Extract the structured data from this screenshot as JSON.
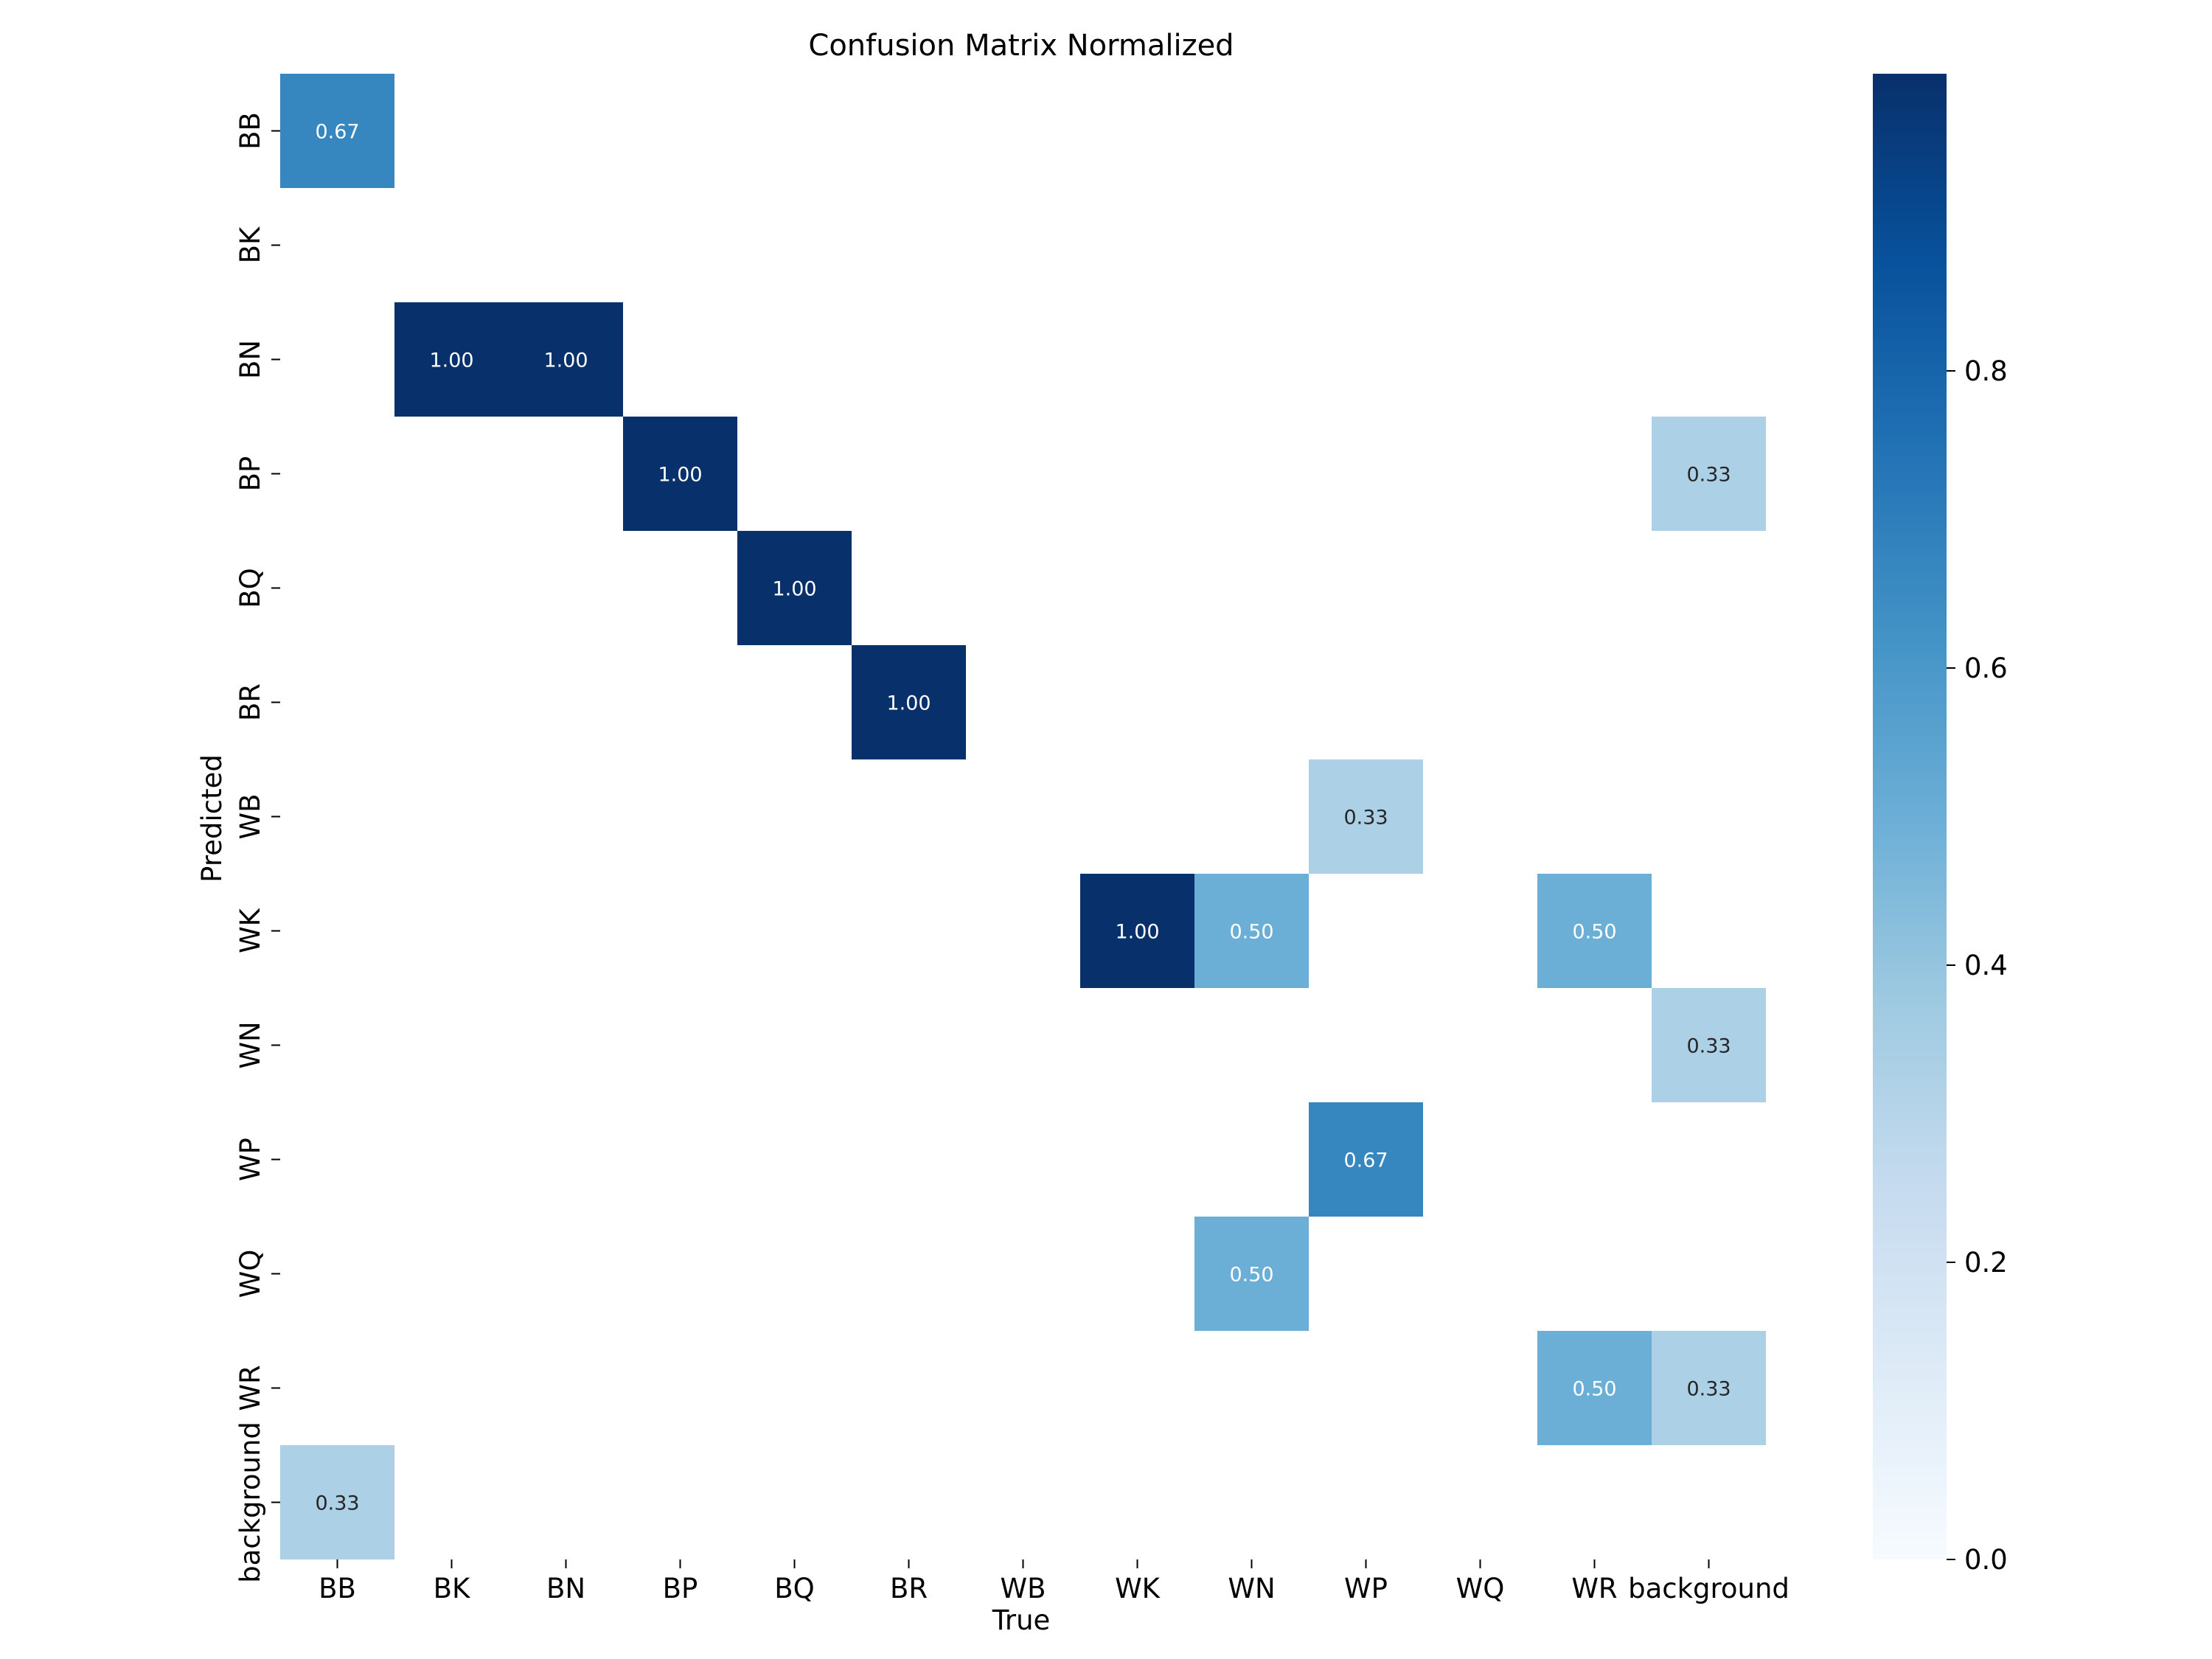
{
  "chart_data": {
    "type": "heatmap",
    "title": "Confusion Matrix Normalized",
    "xlabel": "True",
    "ylabel": "Predicted",
    "x_categories": [
      "BB",
      "BK",
      "BN",
      "BP",
      "BQ",
      "BR",
      "WB",
      "WK",
      "WN",
      "WP",
      "WQ",
      "WR",
      "background"
    ],
    "y_categories": [
      "BB",
      "BK",
      "BN",
      "BP",
      "BQ",
      "BR",
      "WB",
      "WK",
      "WN",
      "WP",
      "WQ",
      "WR",
      "background"
    ],
    "cells": [
      {
        "row": "BB",
        "col": "BB",
        "value": 0.67,
        "label": "0.67"
      },
      {
        "row": "BN",
        "col": "BK",
        "value": 1.0,
        "label": "1.00"
      },
      {
        "row": "BN",
        "col": "BN",
        "value": 1.0,
        "label": "1.00"
      },
      {
        "row": "BP",
        "col": "BP",
        "value": 1.0,
        "label": "1.00"
      },
      {
        "row": "BP",
        "col": "background",
        "value": 0.33,
        "label": "0.33"
      },
      {
        "row": "BQ",
        "col": "BQ",
        "value": 1.0,
        "label": "1.00"
      },
      {
        "row": "BR",
        "col": "BR",
        "value": 1.0,
        "label": "1.00"
      },
      {
        "row": "WB",
        "col": "WP",
        "value": 0.33,
        "label": "0.33"
      },
      {
        "row": "WK",
        "col": "WK",
        "value": 1.0,
        "label": "1.00"
      },
      {
        "row": "WK",
        "col": "WN",
        "value": 0.5,
        "label": "0.50"
      },
      {
        "row": "WK",
        "col": "WR",
        "value": 0.5,
        "label": "0.50"
      },
      {
        "row": "WN",
        "col": "background",
        "value": 0.33,
        "label": "0.33"
      },
      {
        "row": "WP",
        "col": "WP",
        "value": 0.67,
        "label": "0.67"
      },
      {
        "row": "WQ",
        "col": "WN",
        "value": 0.5,
        "label": "0.50"
      },
      {
        "row": "WR",
        "col": "WR",
        "value": 0.5,
        "label": "0.50"
      },
      {
        "row": "WR",
        "col": "background",
        "value": 0.33,
        "label": "0.33"
      },
      {
        "row": "background",
        "col": "BB",
        "value": 0.33,
        "label": "0.33"
      }
    ],
    "colorbar": {
      "colormap": "Blues",
      "range": [
        0,
        1.0
      ],
      "ticks": [
        "0.0",
        "0.2",
        "0.4",
        "0.6",
        "0.8"
      ]
    },
    "grid": false
  }
}
